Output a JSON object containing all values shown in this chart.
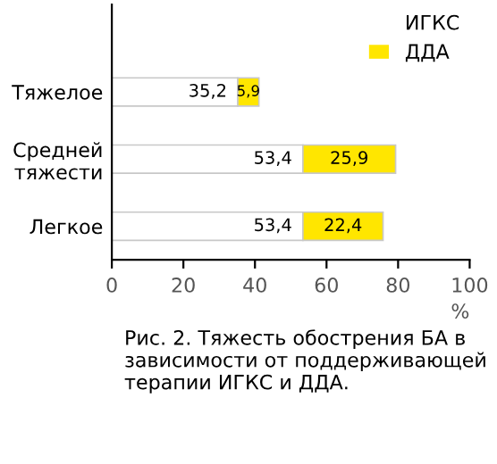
{
  "chart_data": {
    "type": "bar",
    "orientation": "horizontal",
    "stacked": true,
    "categories": [
      "Тяжелое",
      "Средней\nтяжести",
      "Легкое"
    ],
    "series": [
      {
        "name": "ИГКС",
        "color": "#ffffff",
        "values": [
          35.2,
          53.4,
          53.4
        ],
        "value_labels": [
          "35,2",
          "53,4",
          "53,4"
        ]
      },
      {
        "name": "ДДА",
        "color": "#ffe600",
        "values": [
          5.9,
          25.9,
          22.4
        ],
        "value_labels": [
          "5,9",
          "25,9",
          "22,4"
        ]
      }
    ],
    "xlim": [
      0,
      100
    ],
    "xticks": [
      0,
      20,
      40,
      60,
      80,
      100
    ],
    "xlabel": "%",
    "legend": "top right",
    "grid": false,
    "annotations": [
      "Рис. 2. Тяжесть обострения БА в зависимости от поддерживающей терапии ИГКС и ДДА."
    ]
  }
}
